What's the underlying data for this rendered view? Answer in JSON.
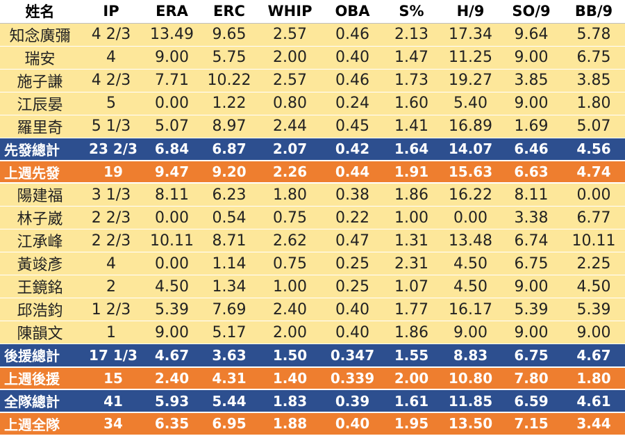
{
  "columns": [
    "姓名",
    "IP",
    "ERA",
    "ERC",
    "WHIP",
    "OBA",
    "S%",
    "H/9",
    "SO/9",
    "BB/9"
  ],
  "rows": [
    {
      "type": "pitcher",
      "cells": [
        "知念廣彌",
        "4 2/3",
        "13.49",
        "9.65",
        "2.57",
        "0.46",
        "2.13",
        "17.34",
        "9.64",
        "5.78"
      ]
    },
    {
      "type": "pitcher",
      "cells": [
        "瑞安",
        "4",
        "9.00",
        "5.75",
        "2.00",
        "0.40",
        "1.47",
        "11.25",
        "9.00",
        "6.75"
      ]
    },
    {
      "type": "pitcher",
      "cells": [
        "施子謙",
        "4 2/3",
        "7.71",
        "10.22",
        "2.57",
        "0.46",
        "1.73",
        "19.27",
        "3.85",
        "3.85"
      ]
    },
    {
      "type": "pitcher",
      "cells": [
        "江辰晏",
        "5",
        "0.00",
        "1.22",
        "0.80",
        "0.24",
        "1.60",
        "5.40",
        "9.00",
        "1.80"
      ]
    },
    {
      "type": "pitcher",
      "cells": [
        "羅里奇",
        "5 1/3",
        "5.07",
        "8.97",
        "2.44",
        "0.45",
        "1.41",
        "16.89",
        "1.69",
        "5.07"
      ]
    },
    {
      "type": "total",
      "cells": [
        "先發總計",
        "23 2/3",
        "6.84",
        "6.87",
        "2.07",
        "0.42",
        "1.64",
        "14.07",
        "6.46",
        "4.56"
      ]
    },
    {
      "type": "last",
      "cells": [
        "上週先發",
        "19",
        "9.47",
        "9.20",
        "2.26",
        "0.44",
        "1.91",
        "15.63",
        "6.63",
        "4.74"
      ]
    },
    {
      "type": "pitcher",
      "cells": [
        "陽建福",
        "3 1/3",
        "8.11",
        "6.23",
        "1.80",
        "0.38",
        "1.86",
        "16.22",
        "8.11",
        "0.00"
      ]
    },
    {
      "type": "pitcher",
      "cells": [
        "林子崴",
        "2 2/3",
        "0.00",
        "0.54",
        "0.75",
        "0.22",
        "1.00",
        "0.00",
        "3.38",
        "6.77"
      ]
    },
    {
      "type": "pitcher",
      "cells": [
        "江承峰",
        "2 2/3",
        "10.11",
        "8.71",
        "2.62",
        "0.47",
        "1.31",
        "13.48",
        "6.74",
        "10.11"
      ]
    },
    {
      "type": "pitcher",
      "cells": [
        "黃竣彥",
        "4",
        "0.00",
        "1.14",
        "0.75",
        "0.25",
        "2.31",
        "4.50",
        "6.75",
        "2.25"
      ]
    },
    {
      "type": "pitcher",
      "cells": [
        "王鏡銘",
        "2",
        "4.50",
        "1.34",
        "1.00",
        "0.25",
        "1.07",
        "4.50",
        "9.00",
        "4.50"
      ]
    },
    {
      "type": "pitcher",
      "cells": [
        "邱浩鈞",
        "1 2/3",
        "5.39",
        "7.69",
        "2.40",
        "0.40",
        "1.77",
        "16.17",
        "5.39",
        "5.39"
      ]
    },
    {
      "type": "pitcher",
      "cells": [
        "陳韻文",
        "1",
        "9.00",
        "5.17",
        "2.00",
        "0.40",
        "1.86",
        "9.00",
        "9.00",
        "9.00"
      ]
    },
    {
      "type": "total",
      "cells": [
        "後援總計",
        "17 1/3",
        "4.67",
        "3.63",
        "1.50",
        "0.347",
        "1.55",
        "8.83",
        "6.75",
        "4.67"
      ]
    },
    {
      "type": "last",
      "cells": [
        "上週後援",
        "15",
        "2.40",
        "4.31",
        "1.40",
        "0.339",
        "2.00",
        "10.80",
        "7.80",
        "1.80"
      ]
    },
    {
      "type": "total",
      "cells": [
        "全隊總計",
        "41",
        "5.93",
        "5.44",
        "1.83",
        "0.39",
        "1.61",
        "11.85",
        "6.59",
        "4.61"
      ]
    },
    {
      "type": "last",
      "cells": [
        "上週全隊",
        "34",
        "6.35",
        "6.95",
        "1.88",
        "0.40",
        "1.95",
        "13.50",
        "7.15",
        "3.44"
      ]
    }
  ],
  "colors": {
    "pitcher_row": "#fde79a",
    "total_row": "#2d4f8f",
    "last_week_row": "#ee7e2f"
  }
}
